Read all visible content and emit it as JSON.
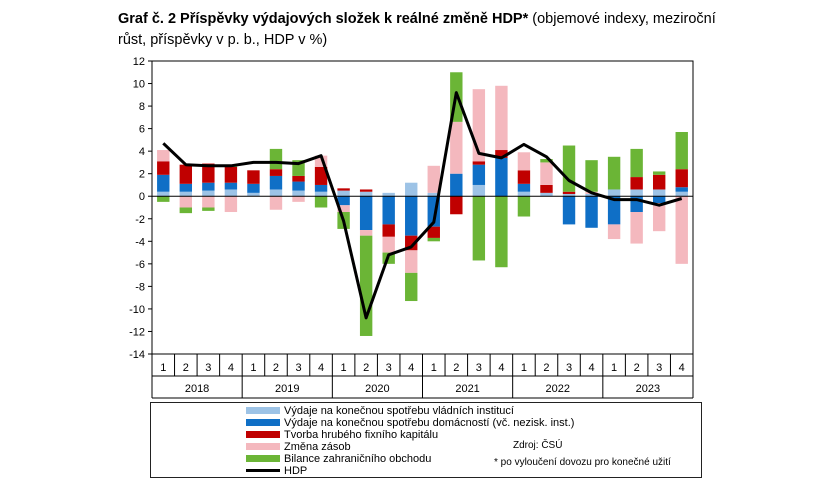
{
  "title": {
    "bold": "Graf č. 2 Příspěvky výdajových složek k reálné změně HDP*",
    "normal": " (objemové indexy, meziroční růst, příspěvky v p. b., HDP v %)"
  },
  "colors": {
    "gov": "#9dc3e6",
    "hh": "#0f6fc6",
    "gfcf": "#c00000",
    "inv": "#f4b8be",
    "trade": "#6bb536",
    "gdp": "#000000"
  },
  "legend": {
    "gov": "Výdaje na konečnou spotřebu vládních institucí",
    "hh": "Výdaje na konečnou spotřebu domácností (vč. nezisk. inst.)",
    "gfcf": "Tvorba hrubého fixního kapitálu",
    "inv": "Změna zásob",
    "trade": "Bilance zahraničního obchodu",
    "gdp": "HDP"
  },
  "source": "Zdroj: ČSÚ",
  "note": "* po vyloučení dovozu pro konečné užití",
  "chart_data": {
    "type": "bar",
    "stacked": true,
    "ylim": [
      -14,
      12
    ],
    "yticks": [
      -14,
      -12,
      -10,
      -8,
      -6,
      -4,
      -2,
      0,
      2,
      4,
      6,
      8,
      10,
      12
    ],
    "grid": false,
    "quarters": [
      "1",
      "2",
      "3",
      "4",
      "1",
      "2",
      "3",
      "4",
      "1",
      "2",
      "3",
      "4",
      "1",
      "2",
      "3",
      "4",
      "1",
      "2",
      "3",
      "4",
      "1",
      "2",
      "3",
      "4"
    ],
    "years": [
      "2018",
      "2019",
      "2020",
      "2021",
      "2022",
      "2023"
    ],
    "series": [
      {
        "name": "Výdaje na konečnou spotřebu vládních institucí",
        "key": "gov",
        "values": [
          0.4,
          0.4,
          0.5,
          0.6,
          0.3,
          0.6,
          0.5,
          0.4,
          0.5,
          0.4,
          0.3,
          1.2,
          0.3,
          0.0,
          1.0,
          0.0,
          0.4,
          0.3,
          0.2,
          0.2,
          0.6,
          0.6,
          0.6,
          0.4
        ]
      },
      {
        "name": "Výdaje na konečnou spotřebu domácností (vč. nezisk. inst.)",
        "key": "hh",
        "values": [
          1.5,
          0.7,
          0.7,
          0.6,
          0.8,
          1.2,
          0.8,
          0.6,
          -0.8,
          -3.0,
          -2.5,
          -3.5,
          -2.7,
          2.0,
          1.8,
          3.4,
          0.7,
          0.0,
          -2.5,
          -2.8,
          -2.5,
          -1.4,
          -0.6,
          0.4
        ]
      },
      {
        "name": "Tvorba hrubého fixního kapitálu",
        "key": "gfcf",
        "values": [
          1.2,
          1.7,
          1.7,
          1.4,
          1.2,
          0.6,
          0.5,
          1.6,
          0.2,
          0.2,
          -1.1,
          -1.3,
          -1.0,
          -1.6,
          0.3,
          0.7,
          1.2,
          0.7,
          0.2,
          0.0,
          0.0,
          1.1,
          1.3,
          1.6
        ]
      },
      {
        "name": "Změna zásob",
        "key": "inv",
        "values": [
          1.0,
          -1.0,
          -1.0,
          -1.4,
          0.0,
          -1.2,
          -0.5,
          1.0,
          -0.6,
          -0.5,
          -1.4,
          -2.0,
          2.4,
          4.6,
          6.4,
          5.7,
          1.6,
          2.0,
          0.0,
          0.2,
          -1.3,
          -2.8,
          -2.5,
          -6.0
        ]
      },
      {
        "name": "Bilance zahraničního obchodu",
        "key": "trade",
        "values": [
          -0.5,
          -0.5,
          -0.3,
          0.2,
          0.0,
          1.8,
          1.4,
          -1.0,
          -1.5,
          -8.9,
          -1.0,
          -2.5,
          -0.3,
          4.4,
          -5.7,
          -6.3,
          -1.8,
          0.3,
          4.1,
          2.8,
          2.9,
          2.5,
          0.3,
          3.3
        ]
      }
    ],
    "line": {
      "name": "HDP",
      "key": "gdp",
      "values": [
        4.7,
        2.8,
        2.7,
        2.7,
        3.0,
        3.0,
        2.9,
        3.6,
        -2.2,
        -10.8,
        -5.2,
        -4.5,
        -2.3,
        9.2,
        3.8,
        3.4,
        4.6,
        3.5,
        1.4,
        0.3,
        -0.3,
        -0.3,
        -0.8,
        -0.2
      ]
    }
  }
}
